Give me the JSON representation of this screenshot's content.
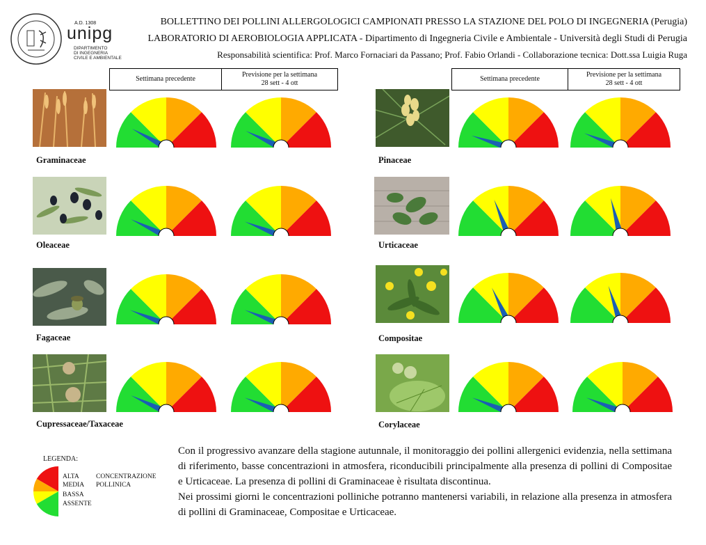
{
  "logo": {
    "year": "A.D. 1308",
    "name": "unipg",
    "dept1": "DIPARTIMENTO",
    "dept2": "DI INGEGNERIA",
    "dept3": "CIVILE E AMBIENTALE",
    "seal": "STUDIUM GENERALE CIVITATIS PERUSIAE · A.D. MCCCVIII"
  },
  "header": {
    "line1": "BOLLETTINO DEI POLLINI ALLERGOLOGICI CAMPIONATI PRESSO LA STAZIONE DEL POLO DI INGEGNERIA (Perugia)",
    "line2": "LABORATORIO DI AEROBIOLOGIA APPLICATA - Dipartimento di Ingegneria Civile e Ambientale - Università degli Studi di Perugia",
    "line3": "Responsabilità scientifica: Prof. Marco Fornaciari da Passano; Prof. Fabio Orlandi - Collaborazione tecnica: Dott.ssa Luigia Ruga"
  },
  "columns": {
    "previous": "Settimana precedente",
    "forecast_label": "Previsione per la settimana",
    "forecast_dates": "28 sett - 4 ott"
  },
  "colors": {
    "green": "#22dd33",
    "yellow": "#ffff00",
    "orange": "#ffaa00",
    "red": "#ee1111",
    "needle": "#1a5fb4"
  },
  "plants": [
    {
      "name": "Graminaceae",
      "image": "grass-image",
      "previous": 0.16,
      "forecast": 0.14
    },
    {
      "name": "Oleaceae",
      "image": "olive-image",
      "previous": 0.14,
      "forecast": 0.12
    },
    {
      "name": "Fagaceae",
      "image": "oak-image",
      "previous": 0.12,
      "forecast": 0.12
    },
    {
      "name": "Cupressaceae/Taxaceae",
      "image": "cypress-image",
      "previous": 0.14,
      "forecast": 0.12
    },
    {
      "name": "Pinaceae",
      "image": "pine-image",
      "previous": 0.1,
      "forecast": 0.12
    },
    {
      "name": "Urticaceae",
      "image": "nettle-image",
      "previous": 0.38,
      "forecast": 0.42
    },
    {
      "name": "Compositae",
      "image": "dandelion-image",
      "previous": 0.36,
      "forecast": 0.4
    },
    {
      "name": "Corylaceae",
      "image": "hazel-image",
      "previous": 0.12,
      "forecast": 0.12
    }
  ],
  "legend": {
    "title": "LEGENDA:",
    "alta": "ALTA",
    "media": "MEDIA",
    "bassa": "BASSA",
    "assente": "ASSENTE",
    "concentrazione": "CONCENTRAZIONE",
    "pollinica": "POLLINICA"
  },
  "text": {
    "p1": "Con il progressivo avanzare della stagione autunnale, il monitoraggio dei pollini allergenici evidenzia, nella settimana di riferimento, basse concentrazioni in atmosfera, riconducibili principalmente alla presenza di pollini di Compositae e Urticaceae. La presenza di pollini di Graminaceae è risultata discontinua.",
    "p2": "Nei prossimi giorni le concentrazioni polliniche potranno mantenersi variabili, in relazione alla presenza in atmosfera di pollini di Graminaceae, Compositae e Urticaceae."
  }
}
